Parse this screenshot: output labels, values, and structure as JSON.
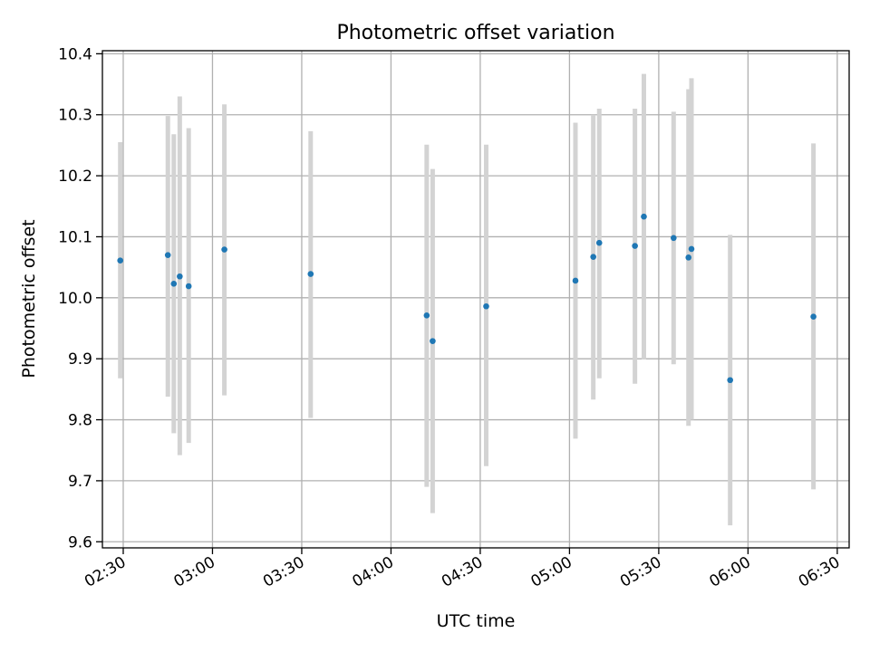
{
  "chart_data": {
    "type": "scatter",
    "title": "Photometric offset variation",
    "xlabel": "UTC time",
    "ylabel": "Photometric offset",
    "xlim": [
      "02:23",
      "06:34"
    ],
    "ylim": [
      9.59,
      10.405
    ],
    "x_ticks": [
      "02:30",
      "03:00",
      "03:30",
      "04:00",
      "04:30",
      "05:00",
      "05:30",
      "06:00",
      "06:30"
    ],
    "y_ticks": [
      "9.6",
      "9.7",
      "9.8",
      "9.9",
      "10.0",
      "10.1",
      "10.2",
      "10.3",
      "10.4"
    ],
    "grid": true,
    "marker_color": "#1f77b4",
    "errorbar_color": "#d3d3d3",
    "points": [
      {
        "x": "02:29",
        "y": 10.061,
        "err_low": 9.868,
        "err_high": 10.255
      },
      {
        "x": "02:45",
        "y": 10.07,
        "err_low": 9.838,
        "err_high": 10.298
      },
      {
        "x": "02:47",
        "y": 10.023,
        "err_low": 9.778,
        "err_high": 10.268
      },
      {
        "x": "02:49",
        "y": 10.035,
        "err_low": 9.742,
        "err_high": 10.33
      },
      {
        "x": "02:52",
        "y": 10.019,
        "err_low": 9.762,
        "err_high": 10.278
      },
      {
        "x": "03:04",
        "y": 10.079,
        "err_low": 9.84,
        "err_high": 10.317
      },
      {
        "x": "03:33",
        "y": 10.039,
        "err_low": 9.803,
        "err_high": 10.273
      },
      {
        "x": "04:12",
        "y": 9.971,
        "err_low": 9.69,
        "err_high": 10.251
      },
      {
        "x": "04:14",
        "y": 9.929,
        "err_low": 9.647,
        "err_high": 10.211
      },
      {
        "x": "04:32",
        "y": 9.986,
        "err_low": 9.724,
        "err_high": 10.251
      },
      {
        "x": "05:02",
        "y": 10.028,
        "err_low": 9.769,
        "err_high": 10.287
      },
      {
        "x": "05:08",
        "y": 10.067,
        "err_low": 9.833,
        "err_high": 10.3
      },
      {
        "x": "05:10",
        "y": 10.09,
        "err_low": 9.868,
        "err_high": 10.31
      },
      {
        "x": "05:22",
        "y": 10.085,
        "err_low": 9.859,
        "err_high": 10.31
      },
      {
        "x": "05:25",
        "y": 10.133,
        "err_low": 9.899,
        "err_high": 10.367
      },
      {
        "x": "05:35",
        "y": 10.098,
        "err_low": 9.891,
        "err_high": 10.305
      },
      {
        "x": "05:40",
        "y": 10.066,
        "err_low": 9.79,
        "err_high": 10.342
      },
      {
        "x": "05:41",
        "y": 10.08,
        "err_low": 9.8,
        "err_high": 10.36
      },
      {
        "x": "05:54",
        "y": 9.865,
        "err_low": 9.627,
        "err_high": 10.103
      },
      {
        "x": "06:22",
        "y": 9.969,
        "err_low": 9.686,
        "err_high": 10.253
      }
    ]
  }
}
